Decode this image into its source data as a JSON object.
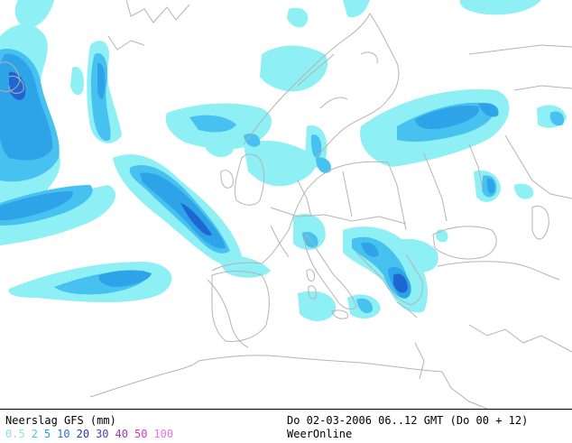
{
  "map": {
    "title": "Neerslag GFS (mm)",
    "date_range": "Do 02-03-2006 06..12 GMT (Do 00 + 12)",
    "source": "WeerOnline",
    "scale": [
      {
        "label": "0.5",
        "color": "#8fe0f0"
      },
      {
        "label": "2",
        "color": "#47c1f0"
      },
      {
        "label": "5",
        "color": "#1f9fe6"
      },
      {
        "label": "10",
        "color": "#2f6fd6"
      },
      {
        "label": "20",
        "color": "#2a3ab8"
      },
      {
        "label": "30",
        "color": "#5a3aa8"
      },
      {
        "label": "40",
        "color": "#a03ab0"
      },
      {
        "label": "50",
        "color": "#d23ac0"
      },
      {
        "label": "100",
        "color": "#e870e0"
      }
    ],
    "colors": {
      "background": "#ffffff",
      "coastline": "#b4b4b4",
      "precip_light": "#8ef0f5",
      "precip_moderate": "#6fd2f0",
      "precip_heavy": "#2fa3e8",
      "precip_extreme": "#1f66d0"
    }
  }
}
